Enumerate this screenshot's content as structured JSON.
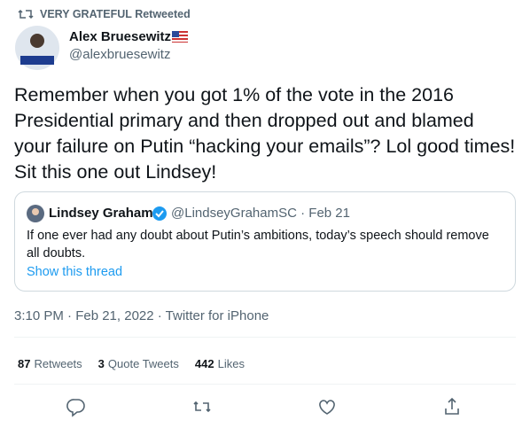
{
  "retweeted_by": "VERY GRATEFUL Retweeted",
  "author": {
    "name": "Alex Bruesewitz",
    "handle": "@alexbruesewitz"
  },
  "text": "Remember when you got 1% of the vote in the 2016 Presidential primary and then dropped out and blamed your failure on Putin “hacking your emails”? Lol good times! Sit this one out Lindsey!",
  "quote": {
    "name": "Lindsey Graham",
    "handle": "@LindseyGrahamSC",
    "separator": "·",
    "date": "Feb 21",
    "text": "If one ever had any doubt about Putin’s ambitions, today’s speech should remove all doubts.",
    "link": "Show this thread"
  },
  "meta": "3:10 PM · Feb 21, 2022 · Twitter for iPhone",
  "stats": [
    {
      "count": 87,
      "label": "Retweets"
    },
    {
      "count": 3,
      "label": "Quote Tweets"
    },
    {
      "count": 442,
      "label": "Likes"
    }
  ]
}
